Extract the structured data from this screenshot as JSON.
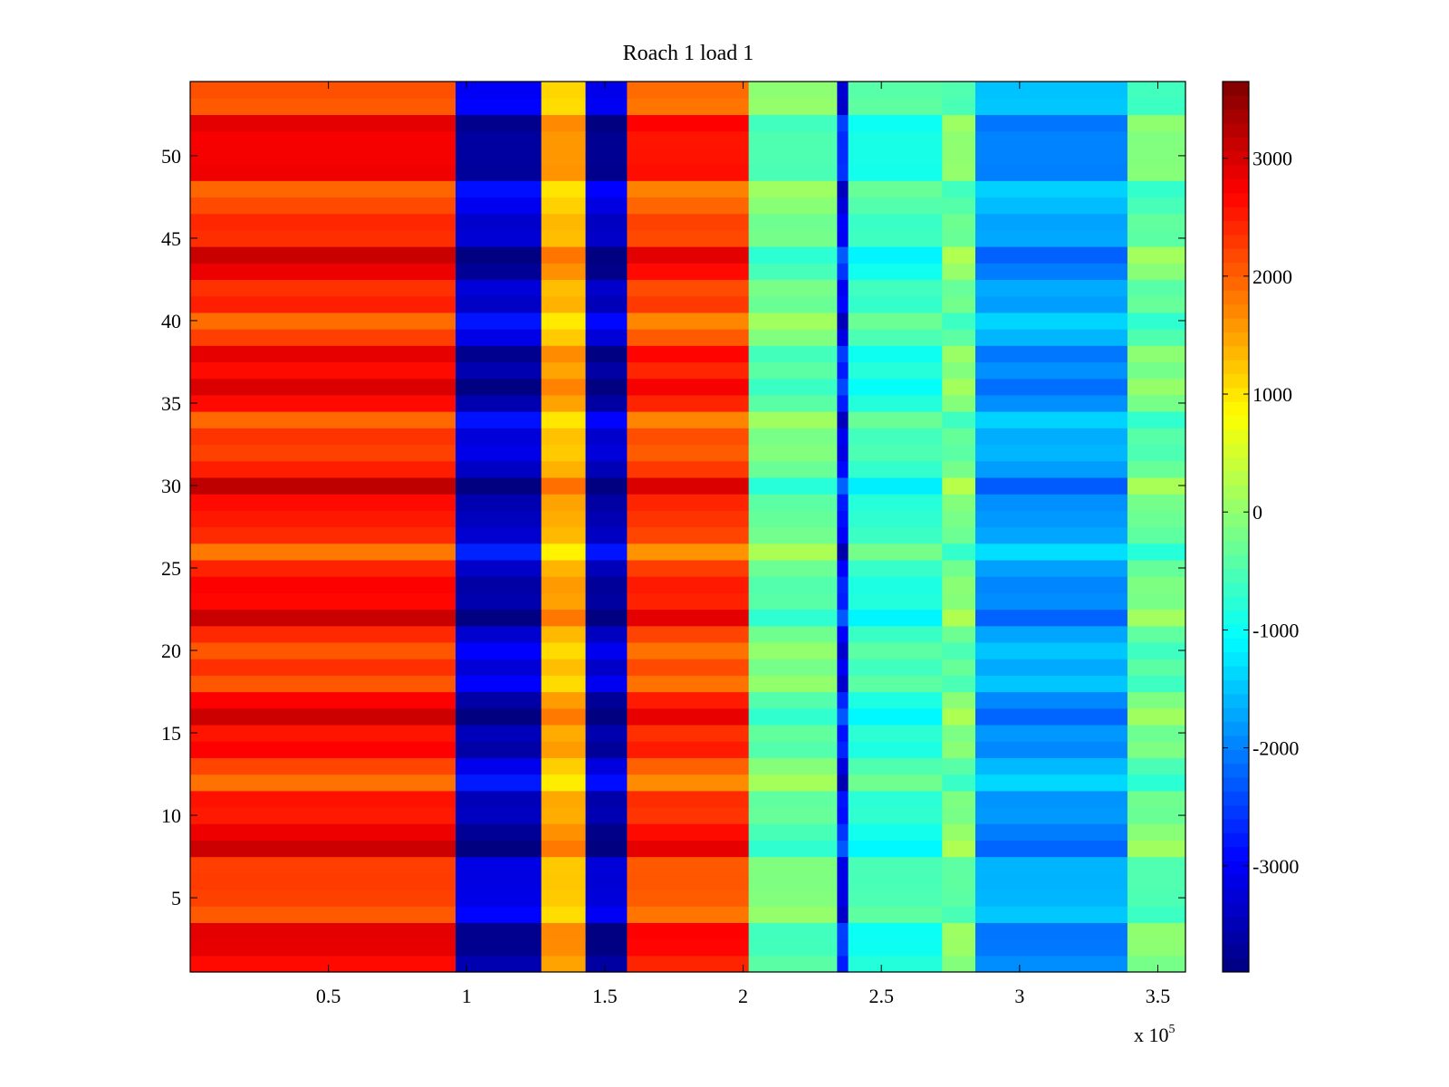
{
  "chart_data": {
    "type": "heatmap",
    "title": "Roach 1 load 1",
    "xlabel": "",
    "ylabel": "",
    "x_multiplier_label": {
      "base": "x 10",
      "exponent": "5"
    },
    "xlim": [
      0,
      3.6
    ],
    "ylim": [
      0.5,
      54.5
    ],
    "x_ticks": [
      0.5,
      1,
      1.5,
      2,
      2.5,
      3,
      3.5
    ],
    "x_tick_labels": [
      "0.5",
      "1",
      "1.5",
      "2",
      "2.5",
      "3",
      "3.5"
    ],
    "y_ticks": [
      5,
      10,
      15,
      20,
      25,
      30,
      35,
      40,
      45,
      50
    ],
    "y_tick_labels": [
      "5",
      "10",
      "15",
      "20",
      "25",
      "30",
      "35",
      "40",
      "45",
      "50"
    ],
    "rows": 54,
    "colormap": "jet",
    "clim": [
      -3900,
      3650
    ],
    "colorbar_ticks": [
      3000,
      2000,
      1000,
      0,
      -1000,
      -2000,
      -3000
    ],
    "colorbar_tick_labels": [
      "3000",
      "2000",
      "1000",
      "0",
      "-1000",
      "-2000",
      "-3000"
    ],
    "x_bands": [
      {
        "x0": 0.0,
        "x1": 0.96,
        "value": 2500
      },
      {
        "x0": 0.96,
        "x1": 1.27,
        "value": -3400
      },
      {
        "x0": 1.27,
        "x1": 1.43,
        "value": 1400
      },
      {
        "x0": 1.43,
        "x1": 1.58,
        "value": -3500
      },
      {
        "x0": 1.58,
        "x1": 2.02,
        "value": 2300
      },
      {
        "x0": 2.02,
        "x1": 2.34,
        "value": -300
      },
      {
        "x0": 2.34,
        "x1": 2.38,
        "value": -2900
      },
      {
        "x0": 2.38,
        "x1": 2.72,
        "value": -700
      },
      {
        "x0": 2.72,
        "x1": 2.84,
        "value": -200
      },
      {
        "x0": 2.84,
        "x1": 3.39,
        "value": -1800
      },
      {
        "x0": 3.39,
        "x1": 3.6,
        "value": -300
      }
    ]
  }
}
